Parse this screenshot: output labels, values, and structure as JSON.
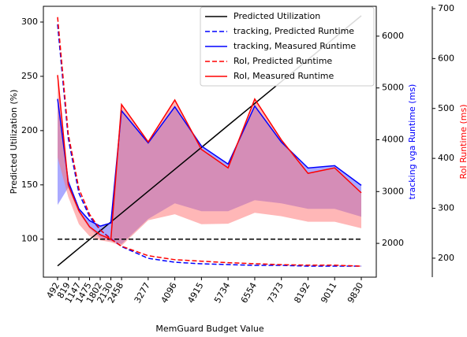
{
  "chart_data": {
    "type": "line",
    "xlabel": "MemGuard Budget Value",
    "ylabel": "Predicted Utilization (%)",
    "y2label": "tracking vga Runtime (ms)",
    "y3label": "RoI Runtime (ms)",
    "y2label_color": "#0000ff",
    "y3label_color": "#ff0000",
    "x": [
      492,
      819,
      1147,
      1475,
      1802,
      2130,
      2458,
      3277,
      4096,
      4915,
      5734,
      6554,
      7373,
      8192,
      9011,
      9830
    ],
    "xticks": [
      492,
      819,
      1147,
      1475,
      1802,
      2130,
      2458,
      3277,
      4096,
      4915,
      5734,
      6554,
      7373,
      8192,
      9011,
      9830
    ],
    "xlim": [
      55,
      10291
    ],
    "ylim": [
      65,
      314.5
    ],
    "yticks": [
      100,
      150,
      200,
      250,
      300
    ],
    "y2lim": [
      1348,
      6576
    ],
    "y2ticks": [
      2000,
      3000,
      4000,
      5000,
      6000
    ],
    "y3lim": [
      162,
      704.7
    ],
    "y3ticks": [
      200,
      300,
      400,
      500,
      600,
      700
    ],
    "hline": {
      "value": 100,
      "color": "#000000",
      "linestyle": "dashed"
    },
    "legend": "upper right",
    "series": [
      {
        "name": "Predicted Utilization",
        "color": "#000000",
        "linestyle": "solid",
        "axis": "y",
        "values": [
          75.4,
          83.5,
          91.6,
          99.7,
          107.7,
          115.8,
          123.9,
          144.1,
          164.3,
          184.5,
          204.8,
          225.0,
          245.2,
          265.4,
          285.6,
          305.8
        ]
      },
      {
        "name": "tracking, Predicted Runtime",
        "color": "#0000ff",
        "linestyle": "dashed",
        "axis": "y2",
        "values": [
          6227,
          4030,
          2970,
          2515,
          2258,
          2091,
          1939,
          1712,
          1636,
          1606,
          1591,
          1576,
          1576,
          1561,
          1561,
          1561
        ]
      },
      {
        "name": "tracking, Measured Runtime",
        "color": "#0000ff",
        "linestyle": "solid",
        "axis": "y2",
        "band_color": "#5555ff",
        "values": [
          4788,
          3197,
          2667,
          2439,
          2333,
          2394,
          4561,
          3939,
          4636,
          3879,
          3530,
          4652,
          3955,
          3455,
          3500,
          3121
        ],
        "band_lower": [
          2742,
          3076,
          2591,
          2288,
          2106,
          2045,
          1985,
          2470,
          2773,
          2621,
          2621,
          2833,
          2773,
          2667,
          2667,
          2515
        ]
      },
      {
        "name": "RoI, Predicted Runtime",
        "color": "#ff0000",
        "linestyle": "dashed",
        "axis": "y3",
        "values": [
          683,
          449,
          339,
          288,
          257,
          238,
          224,
          205,
          197,
          194,
          191,
          189,
          187,
          186,
          186,
          184
        ]
      },
      {
        "name": "RoI, Measured Runtime",
        "color": "#ff0000",
        "linestyle": "solid",
        "axis": "y3",
        "band_color": "#ff6f6f",
        "values": [
          567,
          347,
          295,
          263,
          247,
          238,
          508,
          433,
          517,
          418,
          381,
          519,
          437,
          370,
          381,
          331
        ],
        "band_lower": [
          402,
          323,
          268,
          244,
          236,
          232,
          225,
          276,
          288,
          268,
          269,
          291,
          284,
          273,
          273,
          260
        ]
      }
    ]
  }
}
